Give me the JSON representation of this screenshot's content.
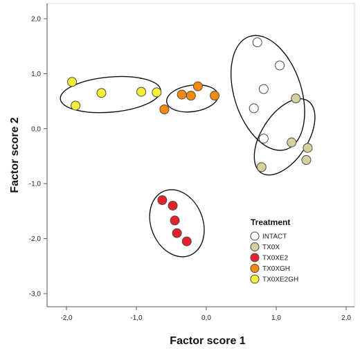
{
  "chart_data": {
    "type": "scatter",
    "title": "",
    "xlabel": "Factor score 1",
    "ylabel": "Factor score 2",
    "xlim": [
      -2.2,
      2.0
    ],
    "ylim": [
      -3.2,
      2.1
    ],
    "x_ticks": [
      -2.0,
      -1.0,
      0.0,
      1.0,
      2.0
    ],
    "x_tick_labels": [
      "-2,0",
      "-1,0",
      "0,0",
      "1,0",
      "2,0"
    ],
    "y_ticks": [
      2.0,
      1.0,
      0.0,
      -1.0,
      -2.0,
      -3.0
    ],
    "y_tick_labels": [
      "2,0",
      "1,0",
      "0,0",
      "-1,0",
      "-2,0",
      "-3,0"
    ],
    "grid": false,
    "legend": {
      "title": "Treatment",
      "placement": "bottom-right"
    },
    "series": [
      {
        "name": "INTACT",
        "color": "#ffffff",
        "x": [
          0.73,
          1.05,
          0.82,
          0.68,
          0.82
        ],
        "y": [
          1.57,
          1.15,
          0.72,
          0.37,
          -0.18
        ]
      },
      {
        "name": "TX0X",
        "color": "#d6cfa0",
        "x": [
          1.28,
          1.22,
          1.45,
          1.43,
          0.79
        ],
        "y": [
          0.55,
          -0.25,
          -0.35,
          -0.57,
          -0.7
        ]
      },
      {
        "name": "TX0XE2",
        "color": "#e3232b",
        "x": [
          -0.63,
          -0.48,
          -0.45,
          -0.42,
          -0.28
        ],
        "y": [
          -1.3,
          -1.4,
          -1.67,
          -1.9,
          -2.05
        ]
      },
      {
        "name": "TX0XGH",
        "color": "#f28a10",
        "x": [
          -0.6,
          -0.35,
          -0.22,
          -0.12,
          0.12
        ],
        "y": [
          0.35,
          0.62,
          0.6,
          0.77,
          0.6
        ]
      },
      {
        "name": "TX0XE2GH",
        "color": "#f6ee37",
        "x": [
          -1.92,
          -1.87,
          -1.5,
          -0.93,
          -0.71
        ],
        "y": [
          0.85,
          0.42,
          0.65,
          0.67,
          0.66
        ]
      }
    ],
    "ellipses": [
      {
        "group": "TX0XE2GH",
        "center": [
          -1.37,
          0.62
        ],
        "rx": 0.72,
        "ry": 0.32,
        "rotation_deg": -5
      },
      {
        "group": "TX0XGH",
        "center": [
          -0.2,
          0.55
        ],
        "rx": 0.37,
        "ry": 0.24,
        "rotation_deg": -8
      },
      {
        "group": "INTACT",
        "center": [
          0.88,
          0.65
        ],
        "rx": 0.48,
        "ry": 1.08,
        "rotation_deg": -18
      },
      {
        "group": "TX0X",
        "center": [
          1.12,
          -0.15
        ],
        "rx": 0.33,
        "ry": 0.78,
        "rotation_deg": 33
      },
      {
        "group": "TX0XE2",
        "center": [
          -0.42,
          -1.72
        ],
        "rx": 0.37,
        "ry": 0.63,
        "rotation_deg": -22
      }
    ]
  }
}
